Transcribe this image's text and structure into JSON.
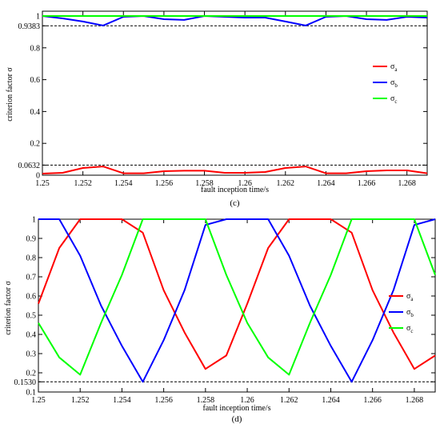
{
  "chart_data": [
    {
      "panel": "(c)",
      "type": "line",
      "xlabel": "fault inception time/s",
      "ylabel": "criterion factor σ",
      "xlim": [
        1.25,
        1.269
      ],
      "ylim": [
        0,
        1.03
      ],
      "x_ticks": [
        "1.25",
        "1.252",
        "1.254",
        "1.256",
        "1.258",
        "1.26",
        "1.262",
        "1.264",
        "1.266",
        "1.268"
      ],
      "y_ticks": [
        "0",
        "0.0632",
        "0.2",
        "0.4",
        "0.6",
        "0.8",
        "0.9383",
        "1"
      ],
      "thresholds": [
        0.9383,
        0.0632
      ],
      "legend": [
        {
          "symbol": "σ",
          "sub": "a"
        },
        {
          "symbol": "σ",
          "sub": "b"
        },
        {
          "symbol": "σ",
          "sub": "c"
        }
      ],
      "legend_position": "right",
      "x": [
        1.25,
        1.251,
        1.252,
        1.253,
        1.254,
        1.255,
        1.256,
        1.257,
        1.258,
        1.259,
        1.26,
        1.261,
        1.262,
        1.263,
        1.264,
        1.265,
        1.266,
        1.267,
        1.268,
        1.269
      ],
      "series": [
        {
          "color": "#ff0000",
          "values": [
            0.01,
            0.015,
            0.045,
            0.055,
            0.012,
            0.012,
            0.025,
            0.028,
            0.028,
            0.015,
            0.015,
            0.02,
            0.045,
            0.055,
            0.012,
            0.012,
            0.025,
            0.03,
            0.03,
            0.012
          ]
        },
        {
          "color": "#0000ff",
          "values": [
            1.0,
            0.985,
            0.965,
            0.94,
            0.995,
            1.0,
            0.98,
            0.975,
            1.0,
            0.995,
            0.99,
            0.99,
            0.965,
            0.94,
            0.995,
            1.0,
            0.98,
            0.975,
            0.995,
            0.99
          ]
        },
        {
          "color": "#00ff00",
          "values": [
            1.0,
            1.0,
            1.0,
            1.0,
            1.0,
            1.0,
            1.0,
            1.0,
            1.0,
            1.0,
            1.0,
            1.0,
            1.0,
            1.0,
            1.0,
            1.0,
            1.0,
            1.0,
            1.0,
            1.0
          ]
        }
      ]
    },
    {
      "panel": "(d)",
      "type": "line",
      "xlabel": "fault inception time/s",
      "ylabel": "criterion factor σ",
      "xlim": [
        1.25,
        1.269
      ],
      "ylim": [
        0.1,
        1.0
      ],
      "x_ticks": [
        "1.25",
        "1.252",
        "1.254",
        "1.256",
        "1.258",
        "1.26",
        "1.262",
        "1.264",
        "1.266",
        "1.268"
      ],
      "y_ticks": [
        "0.1",
        "0.1530",
        "0.2",
        "0.3",
        "0.4",
        "0.5",
        "0.6",
        "0.7",
        "0.8",
        "0.9",
        "1"
      ],
      "thresholds": [
        0.153
      ],
      "legend": [
        {
          "symbol": "σ",
          "sub": "a"
        },
        {
          "symbol": "σ",
          "sub": "b"
        },
        {
          "symbol": "σ",
          "sub": "c"
        }
      ],
      "legend_position": "right",
      "x": [
        1.25,
        1.251,
        1.252,
        1.253,
        1.254,
        1.255,
        1.256,
        1.257,
        1.258,
        1.259,
        1.26,
        1.261,
        1.262,
        1.263,
        1.264,
        1.265,
        1.266,
        1.267,
        1.268,
        1.269
      ],
      "series": [
        {
          "color": "#ff0000",
          "values": [
            0.56,
            0.85,
            1.0,
            1.0,
            1.0,
            0.93,
            0.63,
            0.41,
            0.22,
            0.29,
            0.56,
            0.85,
            1.0,
            1.0,
            1.0,
            0.93,
            0.63,
            0.41,
            0.22,
            0.29
          ]
        },
        {
          "color": "#0000ff",
          "values": [
            1.0,
            1.0,
            0.81,
            0.55,
            0.34,
            0.153,
            0.37,
            0.63,
            0.97,
            1.0,
            1.0,
            1.0,
            0.81,
            0.55,
            0.34,
            0.153,
            0.37,
            0.63,
            0.97,
            1.0
          ]
        },
        {
          "color": "#00ff00",
          "values": [
            0.46,
            0.28,
            0.19,
            0.46,
            0.71,
            1.0,
            1.0,
            1.0,
            1.0,
            0.71,
            0.46,
            0.28,
            0.19,
            0.46,
            0.71,
            1.0,
            1.0,
            1.0,
            1.0,
            0.71
          ]
        }
      ]
    }
  ]
}
